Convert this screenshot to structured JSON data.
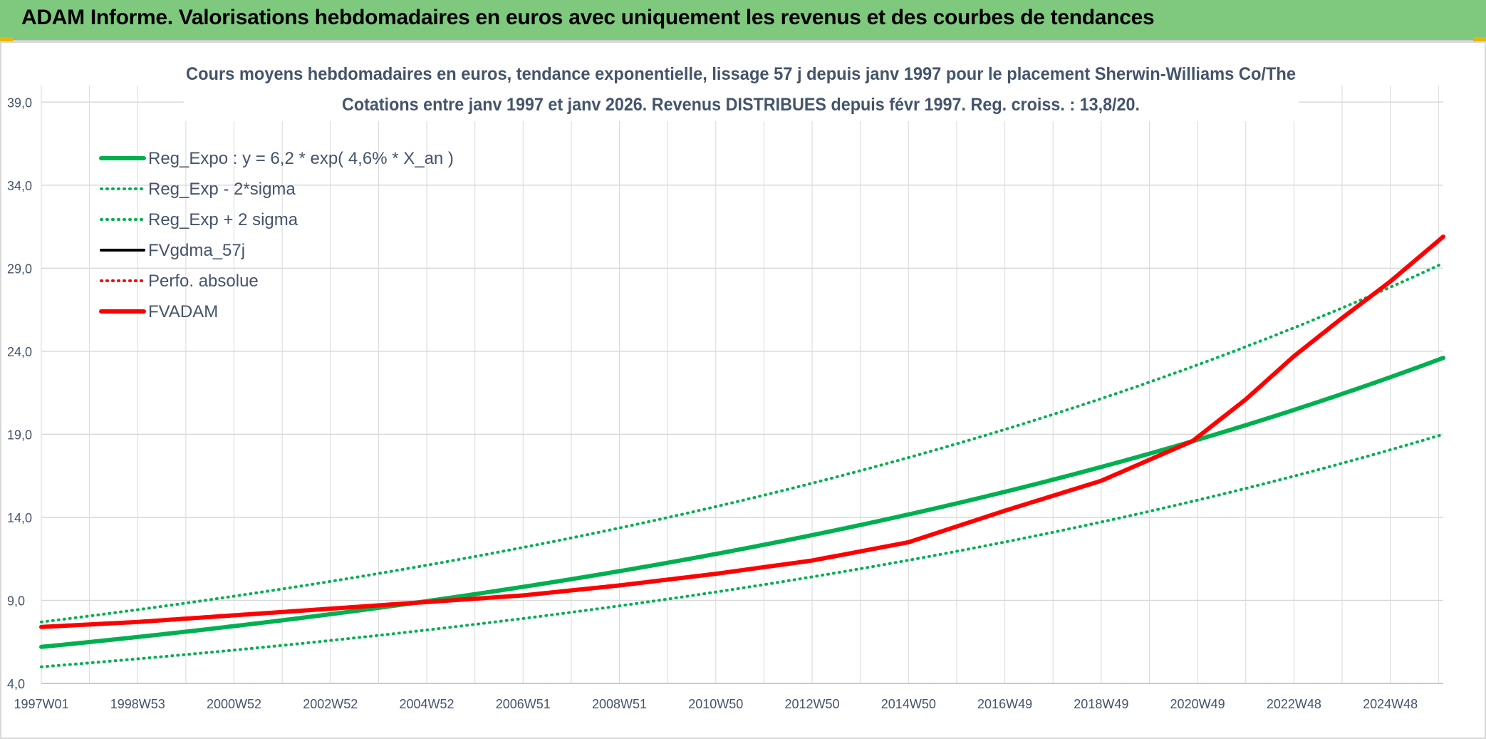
{
  "banner": {
    "title": "ADAM Informe. Valorisations hebdomadaires en euros avec uniquement les revenus et des courbes de tendances"
  },
  "colors": {
    "banner_bg": "#7fc97f",
    "green": "#00b050",
    "red": "#ff0000",
    "black": "#000000",
    "grid": "#d9d9d9",
    "text": "#44546a"
  },
  "chart_data": {
    "type": "line",
    "title_line1": "Cours moyens hebdomadaires en euros, tendance exponentielle, lissage 57 j depuis janv 1997 pour le placement Sherwin-Williams Co/The",
    "title_line2": "Cotations entre janv 1997 et janv 2026. Revenus DISTRIBUES depuis févr 1997. Reg. croiss. : 13,8/20.",
    "ylim": [
      4.0,
      40.0
    ],
    "y_ticks": [
      "4,0",
      "9,0",
      "14,0",
      "19,0",
      "24,0",
      "29,0",
      "34,0",
      "39,0"
    ],
    "y_tick_values": [
      4,
      9,
      14,
      19,
      24,
      29,
      34,
      39
    ],
    "x_tick_labels": [
      "1997W01",
      "1998W53",
      "2000W52",
      "2002W52",
      "2004W52",
      "2006W51",
      "2008W51",
      "2010W50",
      "2012W50",
      "2014W50",
      "2016W49",
      "2018W49",
      "2020W49",
      "2022W48",
      "2024W48"
    ],
    "x_range_years": [
      1997.0,
      2026.1
    ],
    "grid": true,
    "legend_position": "top-left",
    "series": [
      {
        "name": "Reg_Expo : y = 6,2 * exp( 4,6% *  X_an )",
        "color": "#00b050",
        "style": "solid-thick",
        "x": [
          1997,
          2001,
          2005,
          2009,
          2013,
          2017,
          2021,
          2026.1
        ],
        "y": [
          6.2,
          7.5,
          8.9,
          10.7,
          12.9,
          15.5,
          18.7,
          23.6
        ]
      },
      {
        "name": "Reg_Exp - 2*sigma",
        "color": "#00b050",
        "style": "dotted",
        "x": [
          1997,
          2001,
          2005,
          2009,
          2013,
          2017,
          2021,
          2026.1
        ],
        "y": [
          5.0,
          6.1,
          7.2,
          8.7,
          10.4,
          12.5,
          15.1,
          19.0
        ]
      },
      {
        "name": "Reg_Exp + 2 sigma",
        "color": "#00b050",
        "style": "dotted",
        "x": [
          1997,
          2001,
          2005,
          2009,
          2013,
          2017,
          2021,
          2026.1
        ],
        "y": [
          7.7,
          9.3,
          11.1,
          13.3,
          16.0,
          19.3,
          23.3,
          29.3
        ]
      },
      {
        "name": "FVgdma_57j",
        "color": "#000000",
        "style": "solid",
        "x": [
          1997,
          1999,
          2001,
          2003,
          2005,
          2007,
          2009,
          2011,
          2013,
          2015,
          2017,
          2019,
          2020.9,
          2022,
          2023,
          2024,
          2025,
          2026.1
        ],
        "y": [
          7.4,
          7.7,
          8.1,
          8.5,
          8.9,
          9.3,
          9.9,
          10.6,
          11.4,
          12.5,
          14.4,
          16.2,
          18.6,
          21.1,
          23.7,
          26.0,
          28.2,
          30.9
        ]
      },
      {
        "name": "Perfo. absolue",
        "color": "#ff0000",
        "style": "dotted",
        "x": [
          1997,
          1999,
          2001,
          2003,
          2005,
          2007,
          2009,
          2011,
          2013,
          2015,
          2017,
          2019,
          2020.9,
          2022,
          2023,
          2024,
          2025,
          2026.1
        ],
        "y": [
          7.4,
          7.7,
          8.1,
          8.5,
          8.9,
          9.3,
          9.9,
          10.6,
          11.4,
          12.5,
          14.4,
          16.2,
          18.6,
          21.1,
          23.7,
          26.0,
          28.2,
          30.9
        ]
      },
      {
        "name": "FVADAM",
        "color": "#ff0000",
        "style": "solid-thick",
        "x": [
          1997,
          1999,
          2001,
          2003,
          2005,
          2007,
          2009,
          2011,
          2013,
          2015,
          2017,
          2019,
          2020.9,
          2022,
          2023,
          2024,
          2025,
          2026.1
        ],
        "y": [
          7.4,
          7.7,
          8.1,
          8.5,
          8.9,
          9.3,
          9.9,
          10.6,
          11.4,
          12.5,
          14.4,
          16.2,
          18.6,
          21.1,
          23.7,
          26.0,
          28.2,
          30.9
        ]
      }
    ]
  }
}
